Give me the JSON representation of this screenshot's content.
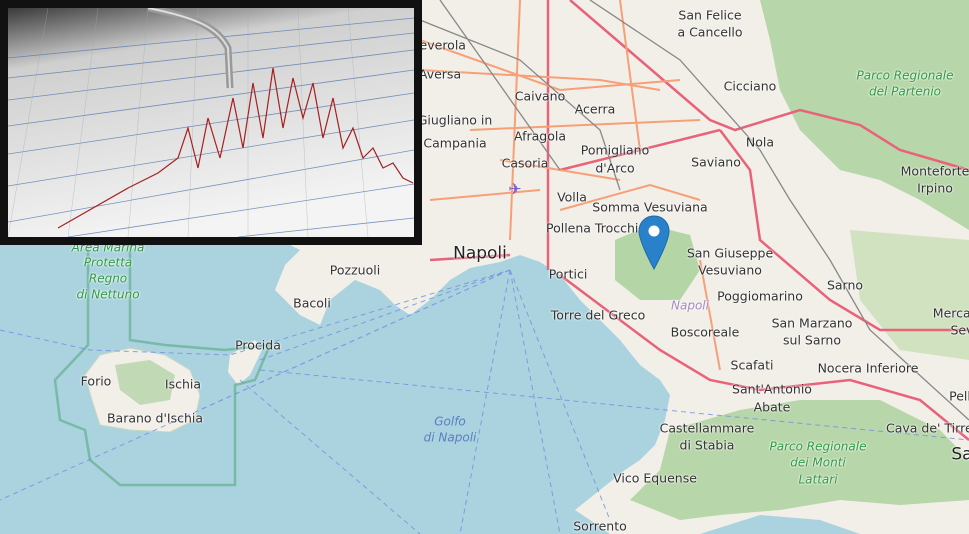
{
  "map": {
    "colors": {
      "sea": "#aad3df",
      "land": "#f2efe9",
      "forest": "#add19e",
      "motorway": "#e8627a",
      "primary": "#f79f76",
      "rail": "#777777",
      "marker": "#2a81cb"
    },
    "labels": {
      "places": [
        "San Felice",
        "a Cancello",
        "Aversa",
        "Caivano",
        "Acerra",
        "Cicciano",
        "Afragola",
        "Nola",
        "Casoria",
        "Pomigliano",
        "d'Arco",
        "Saviano",
        "Volla",
        "Somma Vesuviana",
        "Pollena Trocchia",
        "Napoli",
        "San Giuseppe",
        "Vesuviano",
        "Monteforte",
        "Irpino",
        "Pozzuoli",
        "Portici",
        "Bacoli",
        "Poggiomarino",
        "Sarno",
        "Torre del Greco",
        "Boscoreale",
        "San Marzano",
        "sul Sarno",
        "Procida",
        "Scafati",
        "Nocera Inferiore",
        "Forio",
        "Ischia",
        "Sant'Antonio",
        "Abate",
        "Barano d'Ischia",
        "Castellammare",
        "di Stabia",
        "Cava de' Tirreni",
        "Vico Equense",
        "Sorrento",
        "Mercato",
        "Sev",
        "Pell",
        "Sa",
        "Giugliano in",
        "Campania",
        "Teverola"
      ],
      "parks": [
        "Parco Regionale",
        "del Partenio",
        "Area Marina",
        "Protetta",
        "Regno",
        "di Nettuno",
        "Parco Regionale",
        "dei Monti",
        "Lattari"
      ],
      "water": [
        "Golfo",
        "di Napoli"
      ],
      "volcano": "Napoli"
    },
    "marker": {
      "icon": "map-pin-icon"
    },
    "inset": {
      "icon": "seismograph-image"
    }
  }
}
